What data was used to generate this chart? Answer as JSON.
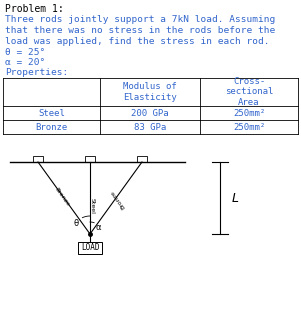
{
  "title": "Problem 1:",
  "description_lines": [
    "Three rods jointly support a 7kN load. Assuming",
    "that there was no stress in the rods before the",
    "load was applied, find the stress in each rod."
  ],
  "params": [
    "θ = 25°",
    "α = 20°"
  ],
  "props_label": "Properties:",
  "table_col1": [
    "",
    "Steel",
    "Bronze"
  ],
  "table_col2": [
    "Modulus of\nElasticity",
    "200 GPa",
    "83 GPa"
  ],
  "table_col3": [
    "Cross-\nsectional\nArea",
    "250mm²",
    "250mm²"
  ],
  "text_color_title": "#000000",
  "text_color_body": "#3366cc",
  "text_color_table": "#3366cc",
  "bg_color": "#ffffff",
  "theta": 25,
  "alpha": 20
}
